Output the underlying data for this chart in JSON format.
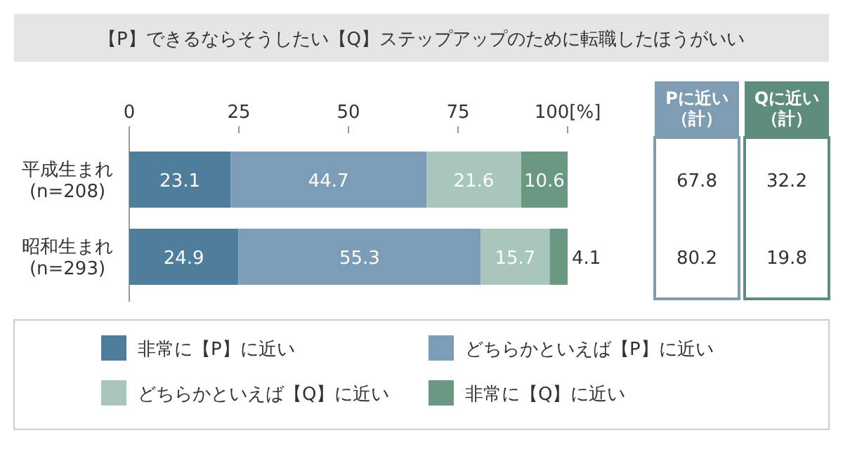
{
  "chart_data": {
    "type": "bar",
    "orientation": "horizontal",
    "stacked": true,
    "data_labels": true,
    "legend": "bottom",
    "title": "【P】できるならそうしたい【Q】ステップアップのために転職したほうがいい",
    "categories": [
      "平成生まれ\n(n=208)",
      "昭和生まれ\n(n=293)"
    ],
    "xlim": [
      0,
      100
    ],
    "xticks": [
      0,
      25,
      50,
      75,
      {
        "value": 100,
        "label": "100[%]"
      }
    ],
    "series": [
      {
        "name": "非常に【P】に近い",
        "color": "#4e7e9c",
        "values": [
          23.1,
          24.9
        ]
      },
      {
        "name": "どちらかといえば【P】に近い",
        "color": "#7b9db7",
        "values": [
          44.7,
          55.3
        ]
      },
      {
        "name": "どちらかといえば【Q】に近い",
        "color": "#a8c6bc",
        "values": [
          21.6,
          15.7
        ]
      },
      {
        "name": "非常に【Q】に近い",
        "color": "#6a9883",
        "values": [
          10.6,
          4.1
        ]
      }
    ],
    "annotations": [
      "Pに近い（計）",
      "Qに近い（計）",
      "67.8",
      "32.2",
      "80.2",
      "19.8"
    ]
  }
}
